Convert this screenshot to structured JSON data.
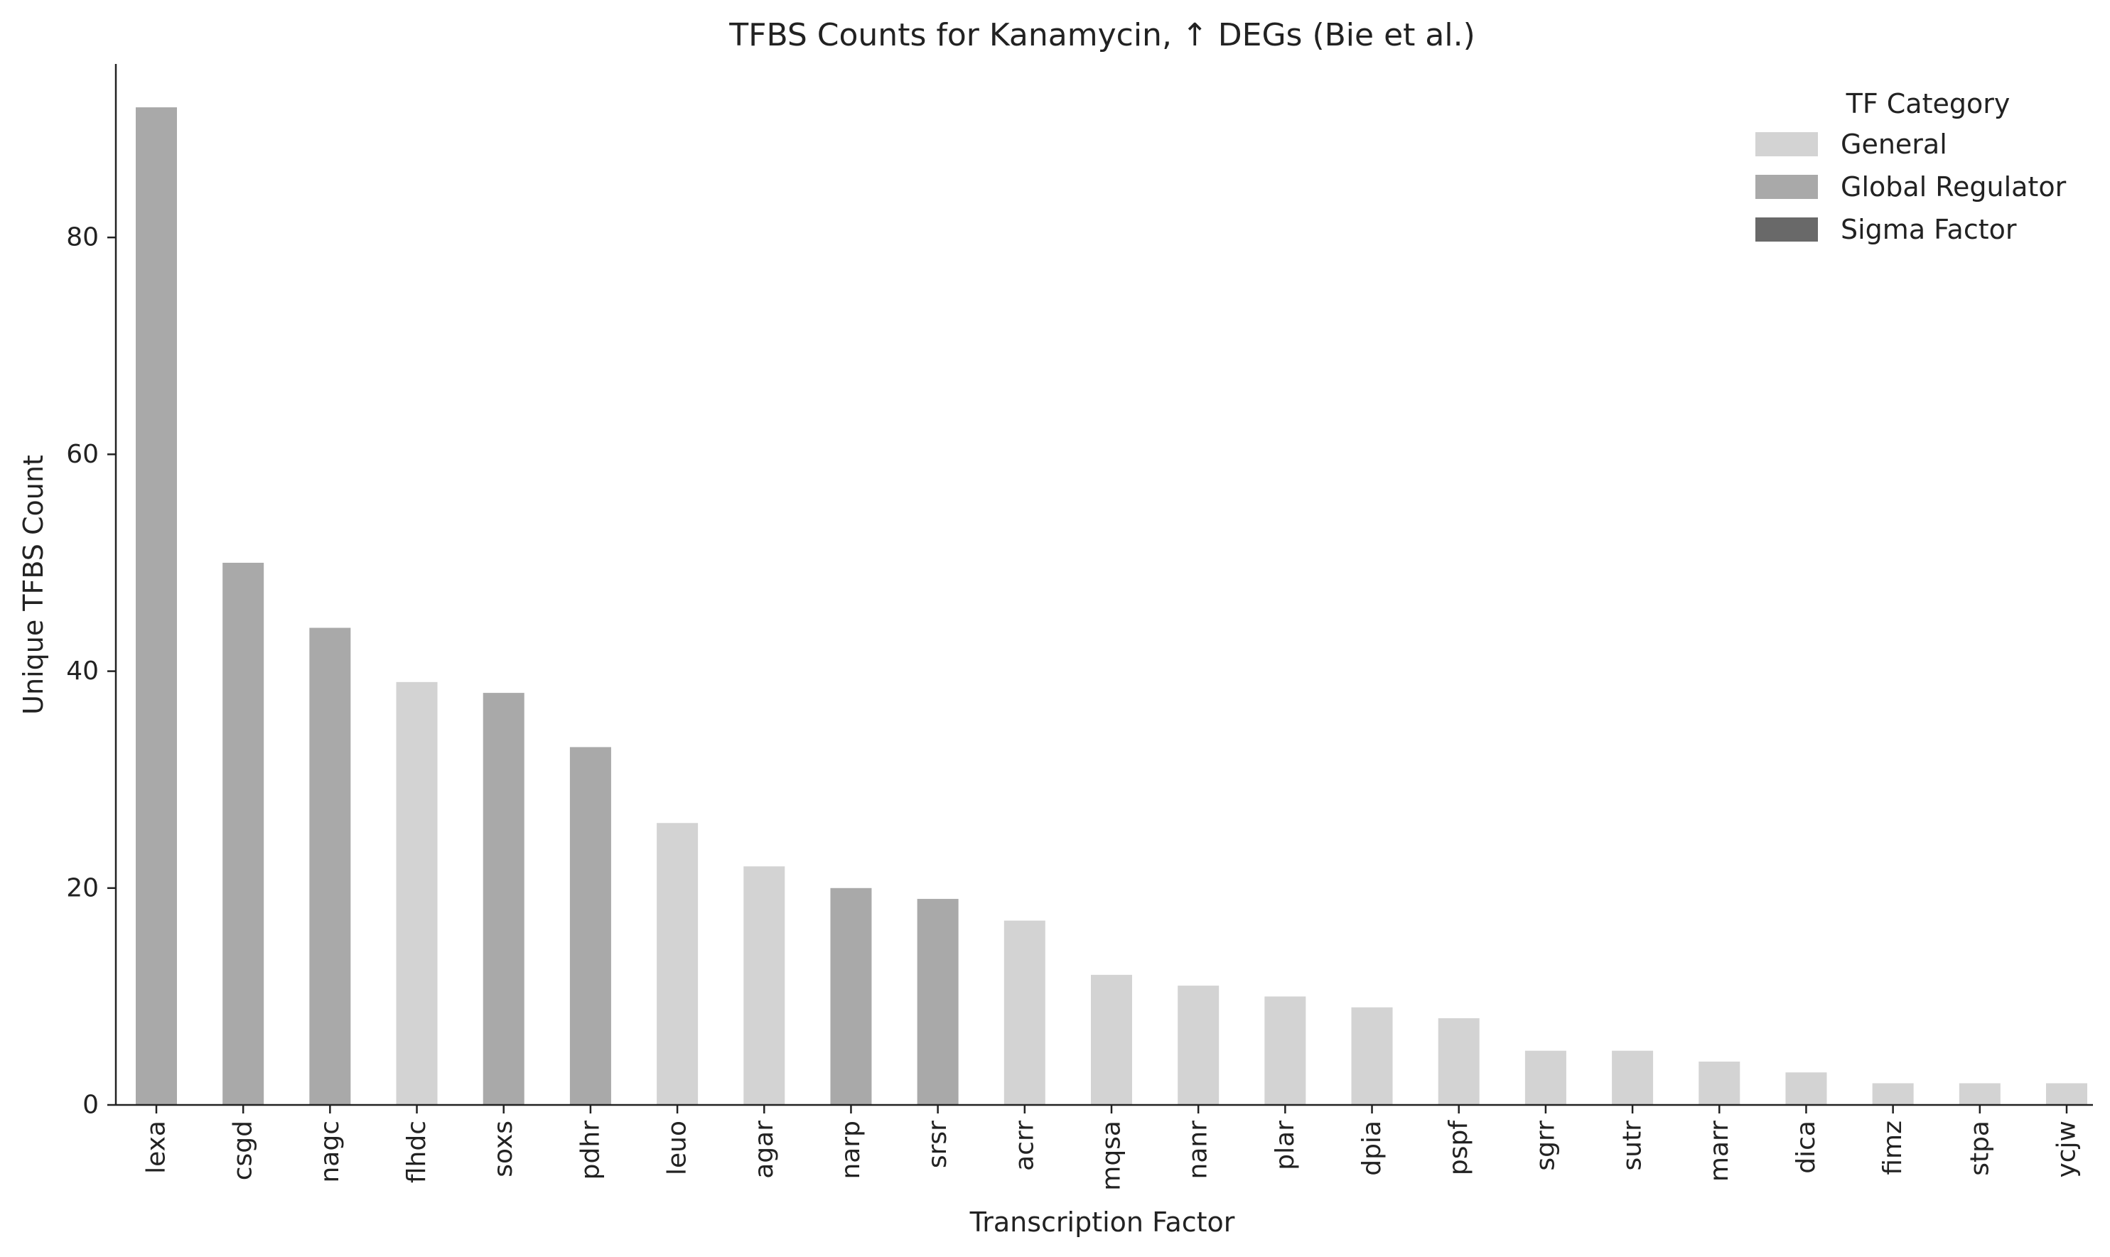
{
  "chart_data": {
    "type": "bar",
    "title": "TFBS Counts for Kanamycin, ↑ DEGs (Bie et al.)",
    "xlabel": "Transcription Factor",
    "ylabel": "Unique TFBS Count",
    "ylim": [
      0,
      96
    ],
    "yticks": [
      0,
      20,
      40,
      60,
      80
    ],
    "grid": false,
    "legend": {
      "title": "TF Category",
      "placement": "top-right",
      "entries": [
        {
          "label": "General",
          "color": "#d3d3d3"
        },
        {
          "label": "Global Regulator",
          "color": "#a9a9a9"
        },
        {
          "label": "Sigma Factor",
          "color": "#696969"
        }
      ]
    },
    "categories": [
      "lexa",
      "csgd",
      "nagc",
      "flhdc",
      "soxs",
      "pdhr",
      "leuo",
      "agar",
      "narp",
      "srsr",
      "acrr",
      "mqsa",
      "nanr",
      "plar",
      "dpia",
      "pspf",
      "sgrr",
      "sutr",
      "marr",
      "dica",
      "fimz",
      "stpa",
      "ycjw"
    ],
    "values": [
      92,
      50,
      44,
      39,
      38,
      33,
      26,
      22,
      20,
      19,
      17,
      12,
      11,
      10,
      9,
      8,
      5,
      5,
      4,
      3,
      2,
      2,
      2
    ],
    "bar_categories": [
      "Global Regulator",
      "Global Regulator",
      "Global Regulator",
      "General",
      "Global Regulator",
      "Global Regulator",
      "General",
      "General",
      "Global Regulator",
      "Global Regulator",
      "General",
      "General",
      "General",
      "General",
      "General",
      "General",
      "General",
      "General",
      "General",
      "General",
      "General",
      "General",
      "General"
    ]
  }
}
